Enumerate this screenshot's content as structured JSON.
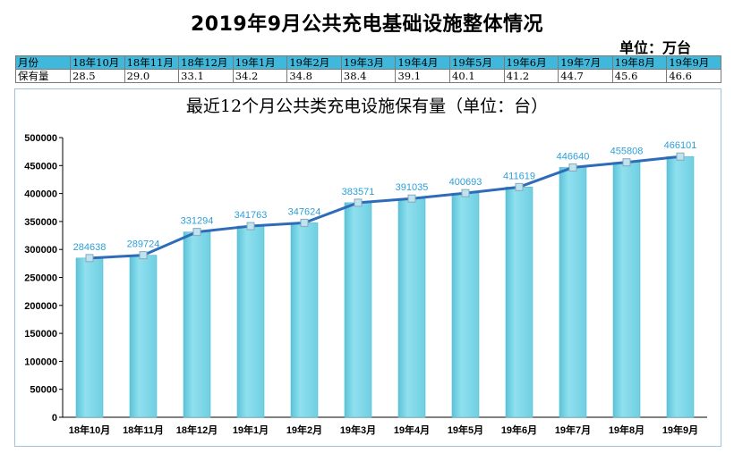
{
  "page": {
    "title": "2019年9月公共充电基础设施整体情况",
    "unit": "单位：万台"
  },
  "table": {
    "header_label": "月份",
    "row_label": "保有量",
    "months": [
      "18年10月",
      "18年11月",
      "18年12月",
      "19年1月",
      "19年2月",
      "19年3月",
      "19年4月",
      "19年5月",
      "19年6月",
      "19年7月",
      "19年8月",
      "19年9月"
    ],
    "values": [
      "28.5",
      "29.0",
      "33.1",
      "34.2",
      "34.8",
      "38.4",
      "39.1",
      "40.1",
      "41.2",
      "44.7",
      "45.6",
      "46.6"
    ]
  },
  "colors": {
    "bar": "#7dd6e6",
    "line": "#2e6bb8",
    "header_fill": "#3fb8dc",
    "data_label": "#2e9fd8"
  },
  "chart_data": {
    "type": "bar",
    "title": "最近12个月公共类充电设施保有量（单位：台）",
    "categories": [
      "18年10月",
      "18年11月",
      "18年12月",
      "19年1月",
      "19年2月",
      "19年3月",
      "19年4月",
      "19年5月",
      "19年6月",
      "19年7月",
      "19年8月",
      "19年9月"
    ],
    "values": [
      284638,
      289724,
      331294,
      341763,
      347624,
      383571,
      391035,
      400693,
      411619,
      446640,
      455808,
      466101
    ],
    "overlay": "line",
    "ylim": [
      0,
      500000
    ],
    "yticks": [
      0,
      50000,
      100000,
      150000,
      200000,
      250000,
      300000,
      350000,
      400000,
      450000,
      500000
    ],
    "grid": false,
    "legend": "none",
    "xlabel": "",
    "ylabel": ""
  }
}
